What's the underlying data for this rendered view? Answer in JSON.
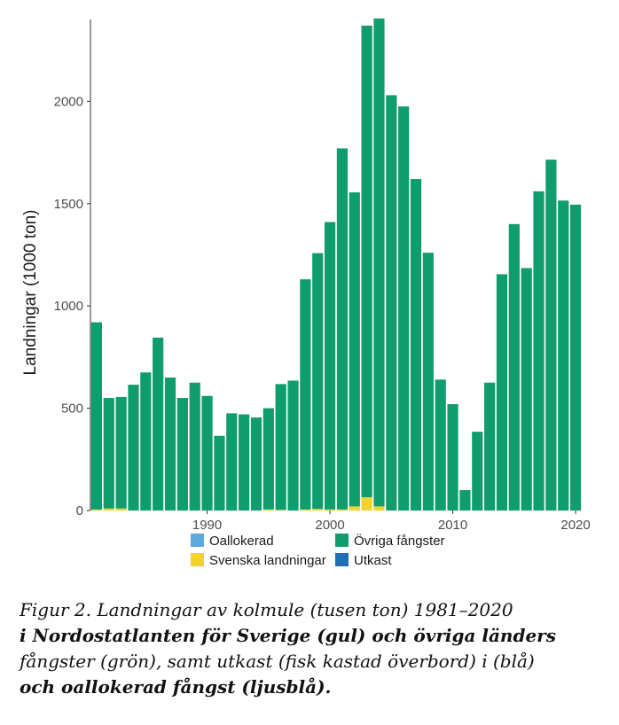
{
  "chart_data": {
    "type": "bar",
    "stacked": true,
    "ylabel": "Landningar (1000 ton)",
    "ylim": [
      0,
      2400
    ],
    "yticks": [
      0,
      500,
      1000,
      1500,
      2000
    ],
    "xticks": [
      1990,
      2000,
      2010,
      2020
    ],
    "xlim": [
      1980.5,
      2020.5
    ],
    "legend_position": "bottom",
    "categories": [
      1981,
      1982,
      1983,
      1984,
      1985,
      1986,
      1987,
      1988,
      1989,
      1990,
      1991,
      1992,
      1993,
      1994,
      1995,
      1996,
      1997,
      1998,
      1999,
      2000,
      2001,
      2002,
      2003,
      2004,
      2005,
      2006,
      2007,
      2008,
      2009,
      2010,
      2011,
      2012,
      2013,
      2014,
      2015,
      2016,
      2017,
      2018,
      2019,
      2020
    ],
    "series": [
      {
        "name": "Svenska landningar",
        "color": "#f2d22e",
        "values": [
          5,
          10,
          10,
          0,
          0,
          0,
          0,
          0,
          0,
          0,
          0,
          0,
          0,
          0,
          5,
          3,
          0,
          5,
          8,
          5,
          5,
          20,
          65,
          20,
          0,
          0,
          0,
          0,
          0,
          0,
          0,
          0,
          0,
          0,
          0,
          0,
          0,
          0,
          0,
          0
        ]
      },
      {
        "name": "Övriga fångster",
        "color": "#0f9d6e",
        "values": [
          915,
          540,
          545,
          615,
          675,
          845,
          650,
          550,
          625,
          560,
          365,
          475,
          470,
          455,
          495,
          615,
          635,
          1125,
          1250,
          1405,
          1765,
          1535,
          2305,
          2385,
          2030,
          1975,
          1620,
          1260,
          640,
          520,
          100,
          385,
          625,
          1155,
          1400,
          1185,
          1560,
          1715,
          1515,
          1495
        ]
      },
      {
        "name": "Utkast",
        "color": "#1f6fb5",
        "values": [
          0,
          0,
          0,
          0,
          0,
          0,
          0,
          0,
          0,
          0,
          0,
          0,
          0,
          0,
          0,
          0,
          0,
          0,
          0,
          0,
          0,
          0,
          0,
          0,
          0,
          0,
          0,
          0,
          0,
          0,
          0,
          0,
          0,
          0,
          0,
          0,
          0,
          0,
          0,
          0
        ]
      },
      {
        "name": "Oallokerad",
        "color": "#5aa9df",
        "values": [
          0,
          0,
          0,
          0,
          0,
          0,
          0,
          0,
          0,
          0,
          0,
          0,
          0,
          0,
          0,
          0,
          0,
          0,
          0,
          0,
          0,
          0,
          0,
          0,
          0,
          0,
          0,
          0,
          0,
          0,
          0,
          0,
          0,
          0,
          0,
          0,
          0,
          0,
          0,
          0
        ]
      }
    ],
    "legend": [
      {
        "label": "Oallokerad",
        "color": "#5aa9df"
      },
      {
        "label": "Svenska landningar",
        "color": "#f2d22e"
      },
      {
        "label": "Övriga fångster",
        "color": "#0f9d6e"
      },
      {
        "label": "Utkast",
        "color": "#1f6fb5"
      }
    ]
  },
  "caption": {
    "line1": "Figur 2. Landningar av kolmule (tusen ton) 1981–2020",
    "line2": "i Nordostatlanten för Sverige (gul) och övriga länders",
    "line3": "fångster (grön), samt utkast (fisk kastad överbord) i (blå)",
    "line4": "och oallokerad fångst (ljusblå)."
  }
}
